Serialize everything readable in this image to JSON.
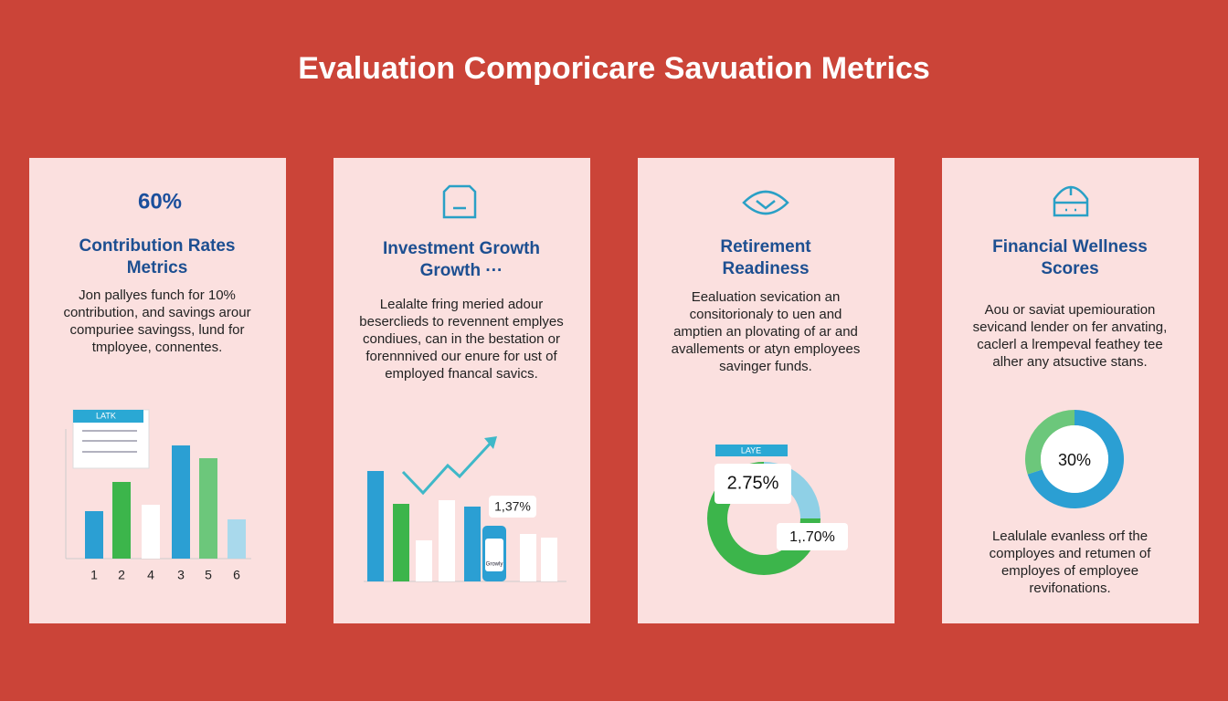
{
  "header": {
    "title": "Evaluation Comporicare Savuation Metrics"
  },
  "cards": [
    {
      "headline": "60%",
      "title": [
        "Contribution Rates",
        "Metrics"
      ],
      "body": [
        "Jon pallyes funch for 10%",
        "contribution, and savings arour",
        "compuriee savingss, lund for",
        "tmployee, connentes."
      ],
      "panel_label": "LATK",
      "chart": {
        "type": "bar",
        "categories": [
          "1",
          "2",
          "4",
          "3",
          "5",
          "6"
        ],
        "values": [
          52,
          84,
          59,
          124,
          110,
          43
        ],
        "ylim": [
          0,
          140
        ],
        "colors": [
          "#2b9fd3",
          "#3cb54b",
          "#ffffff",
          "#2b9fd3",
          "#6cc77b",
          "#a9d9ec"
        ]
      }
    },
    {
      "title": [
        "Investment Growth",
        "Growth ···"
      ],
      "body": [
        "Lealalte fring meried adour",
        "beserclieds to revennent emplyes",
        "condiues, can in the bestation or",
        "forennnived our enure for ust of",
        "employed fnancal savics."
      ],
      "tag": "1,37%",
      "jar_label": "Growly",
      "chart": {
        "type": "bar",
        "values": [
          121,
          85,
          45,
          89,
          82,
          52,
          48
        ],
        "ylim": [
          0,
          140
        ],
        "colors": [
          "#2b9fd3",
          "#3cb54b",
          "#ffffff",
          "#ffffff",
          "#2b9fd3",
          "#ffffff",
          "#ffffff"
        ]
      }
    },
    {
      "title": [
        "Retirement",
        "Readiness"
      ],
      "body": [
        "Eealuation sevication an",
        "consitorionaly to uen and",
        "amptien an plovating of ar and",
        "avallements or atyn employees",
        "savinger funds."
      ],
      "tag": "LAYE",
      "labels": [
        "2.75%",
        "1,.70%"
      ],
      "chart": {
        "type": "pie",
        "values": [
          25,
          75
        ],
        "colors": [
          "#8fd0e6",
          "#3cb54b"
        ]
      }
    },
    {
      "title": [
        "Financial Wellness",
        "Scores"
      ],
      "body": [
        "Aou or saviat upemiouration",
        "sevicand lender on fer anvating,",
        "caclerl a lrempeval feathey tee",
        "alher any atsuctive stans."
      ],
      "center_label": "30%",
      "footer": [
        "Lealulale evanless orf the",
        "comployes and retumen of",
        "employes of employee",
        "revifonations."
      ],
      "chart": {
        "type": "pie",
        "values": [
          70,
          30
        ],
        "colors": [
          "#2b9fd3",
          "#6cc77b"
        ]
      }
    }
  ]
}
